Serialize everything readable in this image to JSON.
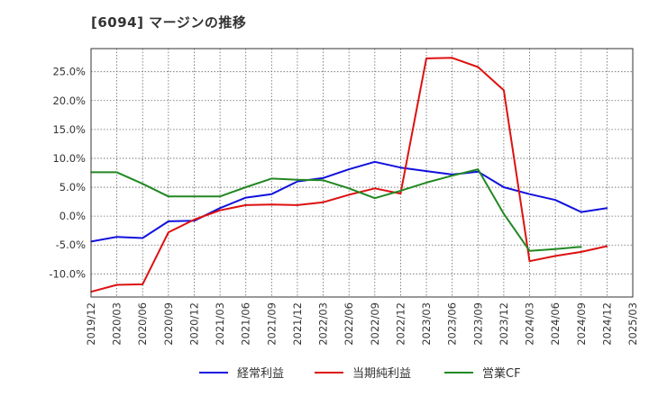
{
  "chart_data": {
    "type": "line",
    "title": "[6094]  マージンの推移",
    "xlabel": "",
    "ylabel": "",
    "ylim": [
      -14,
      29
    ],
    "yticks": [
      -10,
      -5,
      0,
      5,
      10,
      15,
      20,
      25
    ],
    "ytick_labels": [
      "-10.0%",
      "-5.0%",
      "0.0%",
      "5.0%",
      "10.0%",
      "15.0%",
      "20.0%",
      "25.0%"
    ],
    "categories": [
      "2019/12",
      "2020/03",
      "2020/06",
      "2020/09",
      "2020/12",
      "2021/03",
      "2021/06",
      "2021/09",
      "2021/12",
      "2022/03",
      "2022/06",
      "2022/09",
      "2022/12",
      "2023/03",
      "2023/06",
      "2023/09",
      "2023/12",
      "2024/03",
      "2024/06",
      "2024/09",
      "2024/12",
      "2025/03"
    ],
    "grid": true,
    "legend_position": "bottom",
    "series": [
      {
        "name": "経常利益",
        "color": "#1111dd",
        "values": [
          -4.4,
          -3.6,
          -3.8,
          -0.9,
          -0.8,
          1.4,
          3.2,
          3.8,
          6.0,
          6.6,
          8.1,
          9.4,
          8.4,
          7.8,
          7.2,
          7.7,
          5.0,
          3.8,
          2.8,
          0.7,
          1.4,
          null
        ]
      },
      {
        "name": "当期純利益",
        "color": "#dd1111",
        "values": [
          -13.1,
          -11.9,
          -11.8,
          -2.8,
          -0.6,
          1.0,
          1.9,
          2.0,
          1.9,
          2.4,
          3.7,
          4.8,
          3.9,
          27.3,
          27.4,
          25.8,
          21.8,
          -7.8,
          -6.9,
          -6.2,
          -5.2,
          null
        ]
      },
      {
        "name": "営業CF",
        "color": "#228822",
        "values": [
          7.6,
          7.6,
          5.6,
          3.4,
          3.4,
          3.4,
          5.0,
          6.5,
          6.3,
          6.2,
          4.8,
          3.1,
          4.4,
          5.8,
          7.0,
          8.1,
          0.4,
          -6.0,
          -5.7,
          -5.3,
          null,
          null
        ]
      }
    ]
  }
}
